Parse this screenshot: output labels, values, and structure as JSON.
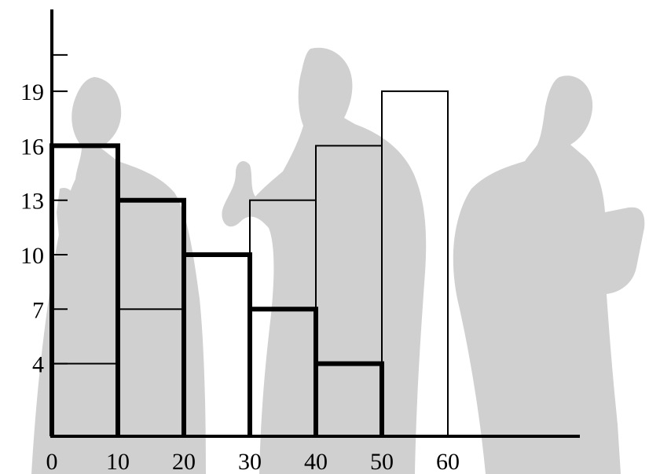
{
  "chart_data": {
    "type": "bar",
    "title": "",
    "xlabel": "",
    "ylabel": "",
    "x_ticks": [
      0,
      10,
      20,
      30,
      40,
      50,
      60
    ],
    "y_ticks": [
      4,
      7,
      10,
      13,
      16,
      19
    ],
    "xlim": [
      0,
      80
    ],
    "ylim": [
      0,
      23
    ],
    "grid": false,
    "series": [
      {
        "style": "thin-outline-bars",
        "color": "#000000",
        "bars": [
          {
            "x_start": 0,
            "x_end": 10,
            "value": 4
          },
          {
            "x_start": 10,
            "x_end": 20,
            "value": 7
          },
          {
            "x_start": 30,
            "x_end": 40,
            "value": 13
          },
          {
            "x_start": 40,
            "x_end": 50,
            "value": 16
          },
          {
            "x_start": 50,
            "x_end": 60,
            "value": 19
          }
        ]
      },
      {
        "style": "thick-outline-bars",
        "color": "#000000",
        "bars": [
          {
            "x_start": 0,
            "x_end": 10,
            "value": 16
          },
          {
            "x_start": 10,
            "x_end": 20,
            "value": 13
          },
          {
            "x_start": 20,
            "x_end": 30,
            "value": 10
          },
          {
            "x_start": 30,
            "x_end": 40,
            "value": 7
          },
          {
            "x_start": 40,
            "x_end": 50,
            "value": 4
          }
        ]
      }
    ],
    "background_color": "#d0d0d0"
  }
}
